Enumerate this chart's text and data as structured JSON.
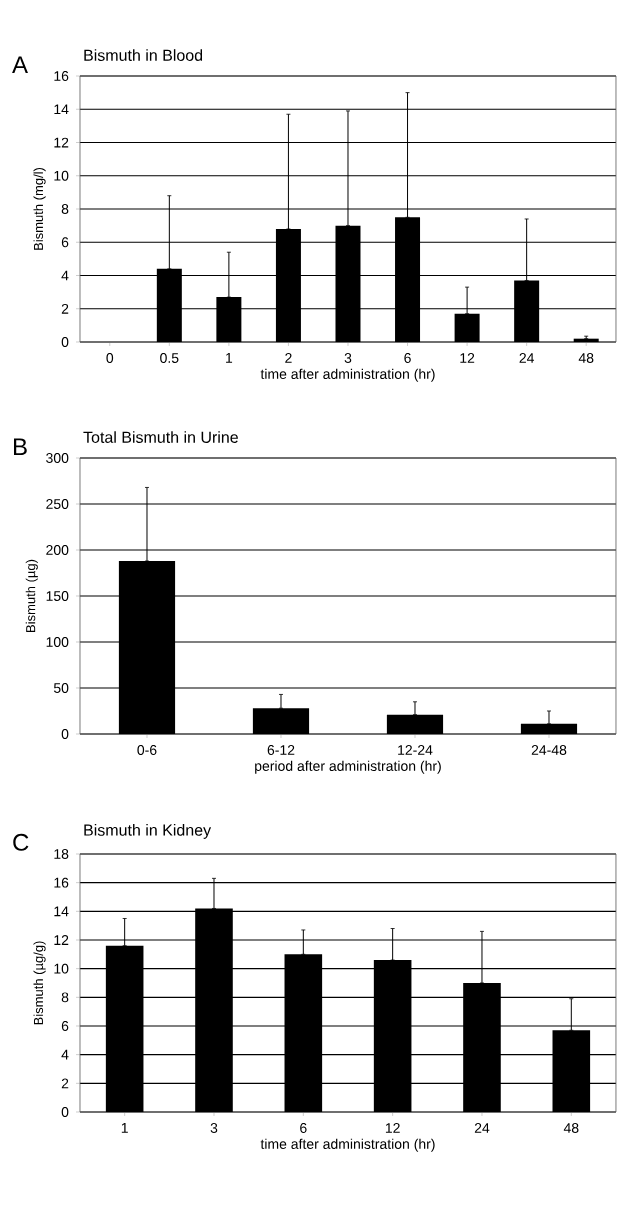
{
  "chart_data": [
    {
      "type": "bar",
      "title": "Bismuth in Blood",
      "annotations": [
        "A"
      ],
      "xlabel": "time after administration (hr)",
      "ylabel": "Bismuth (mg/l)",
      "categories": [
        "0",
        "0.5",
        "1",
        "2",
        "3",
        "6",
        "12",
        "24",
        "48"
      ],
      "values": [
        0,
        4.4,
        2.7,
        6.8,
        7.0,
        7.5,
        1.7,
        3.7,
        0.2
      ],
      "errors": [
        null,
        [
          4.4,
          8.8
        ],
        [
          2.7,
          5.4
        ],
        [
          6.8,
          13.7
        ],
        [
          7.0,
          13.9
        ],
        [
          7.5,
          15.0
        ],
        [
          1.7,
          3.3
        ],
        [
          3.7,
          7.4
        ],
        [
          0.2,
          0.35
        ]
      ],
      "color": "#000000",
      "ylim": [
        0,
        16
      ],
      "yticks": [
        0,
        2,
        4,
        6,
        8,
        10,
        12,
        14,
        16
      ],
      "grid": "y"
    },
    {
      "type": "bar",
      "title": "Total Bismuth in Urine",
      "annotations": [
        "B"
      ],
      "xlabel": "period after administration (hr)",
      "ylabel": "Bismuth (µg)",
      "categories": [
        "0-6",
        "6-12",
        "12-24",
        "24-48"
      ],
      "values": [
        188,
        28,
        21,
        11
      ],
      "errors": [
        [
          188,
          268
        ],
        [
          28,
          43
        ],
        [
          21,
          35
        ],
        [
          11,
          25
        ]
      ],
      "color": "#000000",
      "ylim": [
        0,
        300
      ],
      "yticks": [
        0,
        50,
        100,
        150,
        200,
        250,
        300
      ],
      "grid": "y"
    },
    {
      "type": "bar",
      "title": "Bismuth in Kidney",
      "annotations": [
        "C"
      ],
      "xlabel": "time after administration (hr)",
      "ylabel": "Bismuth (µg/g)",
      "categories": [
        "1",
        "3",
        "6",
        "12",
        "24",
        "48"
      ],
      "values": [
        11.6,
        14.2,
        11.0,
        10.6,
        9.0,
        5.7
      ],
      "errors": [
        [
          11.6,
          13.5
        ],
        [
          14.2,
          16.3
        ],
        [
          11.0,
          12.7
        ],
        [
          10.6,
          12.8
        ],
        [
          9.0,
          12.6
        ],
        [
          5.7,
          7.9
        ]
      ],
      "color": "#000000",
      "ylim": [
        0,
        18
      ],
      "yticks": [
        0,
        2,
        4,
        6,
        8,
        10,
        12,
        14,
        16,
        18
      ],
      "grid": "y"
    }
  ]
}
